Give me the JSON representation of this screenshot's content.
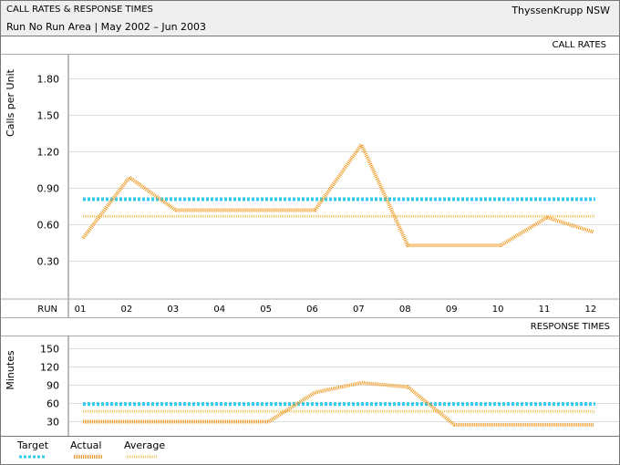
{
  "header": {
    "title": "CALL RATES & RESPONSE TIMES",
    "company": "ThyssenKrupp NSW",
    "subtitle": "Run No Run Area | May 2002 – Jun 2003"
  },
  "colors": {
    "target": "#33ccee",
    "actual": "#ee9922",
    "average": "#f4cc77",
    "grid": "#dddddd"
  },
  "chart_data": [
    {
      "type": "line",
      "title": "CALL RATES",
      "ylabel": "Calls per Unit",
      "xlabel": "RUN",
      "categories": [
        "01",
        "02",
        "03",
        "04",
        "05",
        "06",
        "07",
        "08",
        "09",
        "10",
        "11",
        "12"
      ],
      "yticks": [
        0.3,
        0.6,
        0.9,
        1.2,
        1.5,
        1.8
      ],
      "ytick_labels": [
        "0.30",
        "0.60",
        "0.90",
        "1.20",
        "1.50",
        "1.80"
      ],
      "ylim": [
        0,
        1.98
      ],
      "grid": true,
      "series": [
        {
          "name": "Target",
          "values": [
            0.81,
            0.81,
            0.81,
            0.81,
            0.81,
            0.81,
            0.81,
            0.81,
            0.81,
            0.81,
            0.81,
            0.81
          ]
        },
        {
          "name": "Actual",
          "values": [
            0.49,
            0.99,
            0.72,
            0.72,
            0.72,
            0.72,
            1.26,
            0.43,
            0.43,
            0.43,
            0.66,
            0.54
          ]
        },
        {
          "name": "Average",
          "values": [
            0.67,
            0.67,
            0.67,
            0.67,
            0.67,
            0.67,
            0.67,
            0.67,
            0.67,
            0.67,
            0.67,
            0.67
          ]
        }
      ]
    },
    {
      "type": "line",
      "title": "RESPONSE TIMES",
      "ylabel": "Minutes",
      "categories": [
        "01",
        "02",
        "03",
        "04",
        "05",
        "06",
        "07",
        "08",
        "09",
        "10",
        "11",
        "12"
      ],
      "yticks": [
        30,
        60,
        90,
        120,
        150
      ],
      "ytick_labels": [
        "30",
        "60",
        "90",
        "120",
        "150"
      ],
      "ylim": [
        15,
        165
      ],
      "grid": true,
      "series": [
        {
          "name": "Target",
          "values": [
            59,
            59,
            59,
            59,
            59,
            59,
            59,
            59,
            59,
            59,
            59,
            59
          ]
        },
        {
          "name": "Actual",
          "values": [
            30,
            30,
            30,
            30,
            30,
            78,
            94,
            87,
            25,
            25,
            25,
            25
          ]
        },
        {
          "name": "Average",
          "values": [
            47,
            47,
            47,
            47,
            47,
            47,
            47,
            47,
            47,
            47,
            47,
            47
          ]
        }
      ]
    }
  ],
  "legend": [
    {
      "label": "Target",
      "key": "target"
    },
    {
      "label": "Actual",
      "key": "actual"
    },
    {
      "label": "Average",
      "key": "average"
    }
  ]
}
